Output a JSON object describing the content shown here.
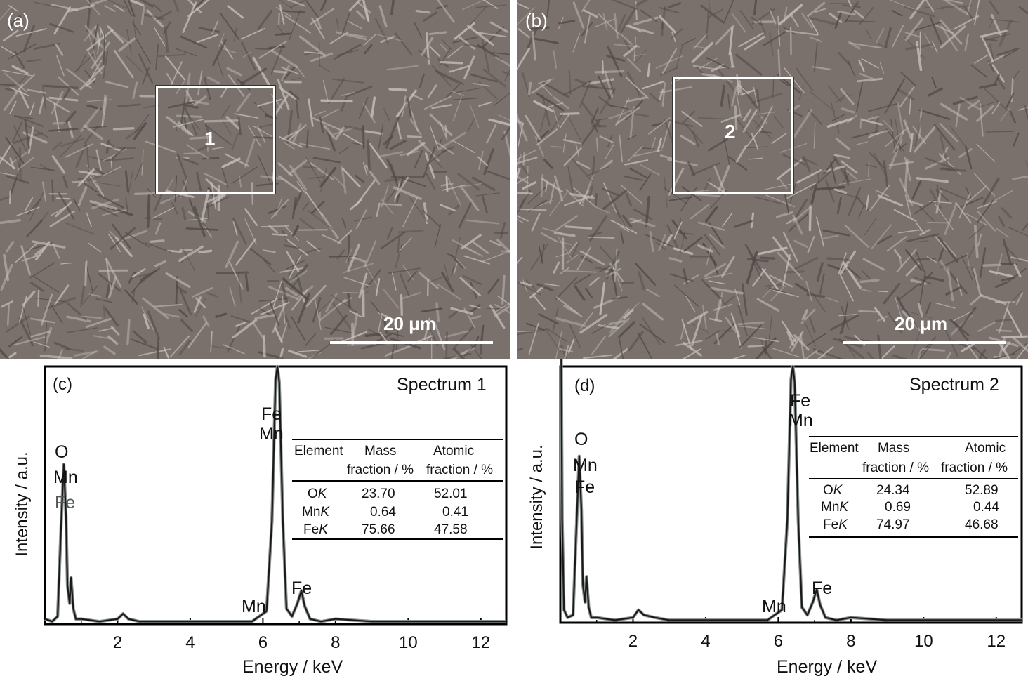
{
  "panels": {
    "a": {
      "label": "(a)",
      "region": "1",
      "scale": "20 μm"
    },
    "b": {
      "label": "(b)",
      "region": "2",
      "scale": "20 μm"
    }
  },
  "chart_data": [
    {
      "type": "line",
      "panel_label": "(c)",
      "title": "Spectrum 1",
      "xlabel": "Energy / keV",
      "ylabel": "Intensity / a.u.",
      "xlim": [
        0,
        12.7
      ],
      "xticks": [
        2,
        4,
        6,
        8,
        10,
        12
      ],
      "series": [
        {
          "x": [
            0.0,
            0.2,
            0.35,
            0.45,
            0.52,
            0.58,
            0.62,
            0.68,
            0.72,
            0.78,
            0.85,
            1.0,
            1.5,
            2.0,
            2.15,
            2.3,
            2.6,
            3.0,
            4.0,
            5.0,
            5.7,
            5.9,
            6.1,
            6.25,
            6.35,
            6.4,
            6.45,
            6.55,
            6.65,
            6.8,
            6.95,
            7.06,
            7.15,
            7.3,
            7.6,
            8.0,
            9.0,
            10.0,
            11.0,
            12.0,
            12.7
          ],
          "y": [
            2,
            1,
            3,
            40,
            62,
            42,
            15,
            8,
            18,
            6,
            2,
            2,
            1,
            2,
            4,
            2,
            1,
            1,
            1,
            1,
            1,
            3,
            5,
            40,
            95,
            100,
            94,
            40,
            6,
            3,
            8,
            13,
            7,
            2,
            1,
            2,
            1,
            1,
            1,
            1,
            1
          ]
        }
      ],
      "peak_labels": [
        {
          "text": "O",
          "energy": 0.52
        },
        {
          "text": "Mn",
          "energy": 0.64
        },
        {
          "text": "Fe",
          "energy": 0.7
        },
        {
          "text": "Fe",
          "energy": 6.4
        },
        {
          "text": "Mn",
          "energy": 6.4
        },
        {
          "text": "Mn",
          "energy": 5.9
        },
        {
          "text": "Fe",
          "energy": 7.06
        }
      ],
      "table": {
        "headers": [
          [
            "Element",
            "Mass",
            "Atomic"
          ],
          [
            "",
            "fraction / %",
            "fraction / %"
          ]
        ],
        "rows": [
          {
            "el": "O",
            "shell": "K",
            "mass": "23.70",
            "atomic": "52.01"
          },
          {
            "el": "Mn",
            "shell": "K",
            "mass": "0.64",
            "atomic": "0.41"
          },
          {
            "el": "Fe",
            "shell": "K",
            "mass": "75.66",
            "atomic": "47.58"
          }
        ]
      }
    },
    {
      "type": "line",
      "panel_label": "(d)",
      "title": "Spectrum 2",
      "xlabel": "Energy / keV",
      "ylabel": "Intensity / a.u.",
      "xlim": [
        0,
        12.7
      ],
      "xticks": [
        2,
        4,
        6,
        8,
        10,
        12
      ],
      "series": [
        {
          "x": [
            0.0,
            0.02,
            0.05,
            0.1,
            0.2,
            0.35,
            0.45,
            0.52,
            0.58,
            0.62,
            0.68,
            0.72,
            0.78,
            0.85,
            1.0,
            1.5,
            2.0,
            2.15,
            2.3,
            2.6,
            3.0,
            4.0,
            5.0,
            5.7,
            5.9,
            6.1,
            6.25,
            6.35,
            6.4,
            6.45,
            6.55,
            6.65,
            6.8,
            6.95,
            7.06,
            7.15,
            7.3,
            7.6,
            8.0,
            9.0,
            10.0,
            11.0,
            12.0,
            12.7
          ],
          "y": [
            140,
            120,
            40,
            5,
            2,
            3,
            40,
            65,
            44,
            15,
            8,
            18,
            6,
            2,
            2,
            1,
            2,
            5,
            3,
            2,
            1,
            1,
            1,
            1,
            3,
            5,
            40,
            95,
            100,
            94,
            40,
            6,
            3,
            8,
            13,
            7,
            2,
            1,
            2,
            1,
            1,
            1,
            1,
            1
          ]
        }
      ],
      "peak_labels": [
        {
          "text": "O",
          "energy": 0.52
        },
        {
          "text": "Mn",
          "energy": 0.64
        },
        {
          "text": "Fe",
          "energy": 0.7
        },
        {
          "text": "Fe",
          "energy": 6.4
        },
        {
          "text": "Mn",
          "energy": 6.4
        },
        {
          "text": "Mn",
          "energy": 5.9
        },
        {
          "text": "Fe",
          "energy": 7.06
        }
      ],
      "table": {
        "headers": [
          [
            "Element",
            "Mass",
            "Atomic"
          ],
          [
            "",
            "fraction / %",
            "fraction / %"
          ]
        ],
        "rows": [
          {
            "el": "O",
            "shell": "K",
            "mass": "24.34",
            "atomic": "52.89"
          },
          {
            "el": "Mn",
            "shell": "K",
            "mass": "0.69",
            "atomic": "0.44"
          },
          {
            "el": "Fe",
            "shell": "K",
            "mass": "74.97",
            "atomic": "46.68"
          }
        ]
      }
    }
  ]
}
